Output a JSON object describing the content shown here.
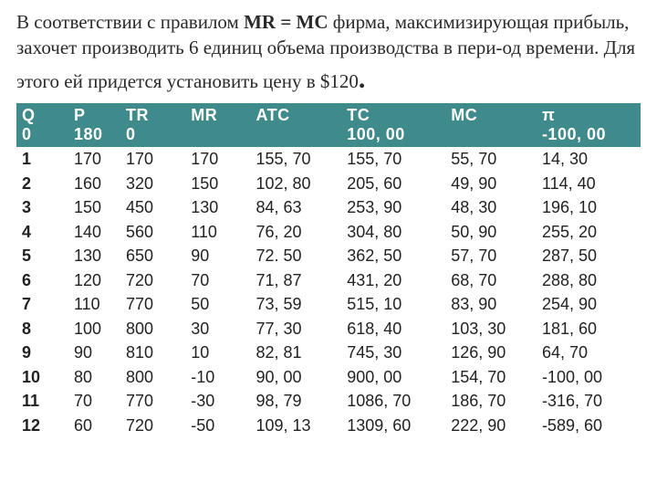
{
  "intro": {
    "part1": "В соответствии с правилом ",
    "rule": "MR = MC",
    "part2": " фирма, максимизирующая прибыль, захочет производить 6 единиц объема производства в пери-од времени. Для этого ей придется установить цену в $120",
    "period": "."
  },
  "table": {
    "columns": [
      "Q",
      "P",
      "TR",
      "MR",
      "ATC",
      "TC",
      "MC",
      "π"
    ],
    "header_bg": "#3f8a8a",
    "header_fg": "#ffffff",
    "first_row": {
      "Q": "0",
      "P": "180",
      "TR": "0",
      "MR": "",
      "ATC": "",
      "TC": "100, 00",
      "MC": "",
      "PI": "-100, 00"
    },
    "rows": [
      {
        "Q": "1",
        "P": "170",
        "TR": "170",
        "MR": "170",
        "ATC": "155, 70",
        "TC": "155, 70",
        "MC": "55, 70",
        "PI": "14, 30"
      },
      {
        "Q": "2",
        "P": "160",
        "TR": "320",
        "MR": "150",
        "ATC": "102, 80",
        "TC": "205, 60",
        "MC": "49, 90",
        "PI": "114, 40"
      },
      {
        "Q": "3",
        "P": "150",
        "TR": "450",
        "MR": "130",
        "ATC": "84, 63",
        "TC": "253, 90",
        "MC": "48, 30",
        "PI": "196, 10"
      },
      {
        "Q": "4",
        "P": "140",
        "TR": "560",
        "MR": "110",
        "ATC": "76, 20",
        "TC": "304, 80",
        "MC": "50, 90",
        "PI": "255, 20"
      },
      {
        "Q": "5",
        "P": "130",
        "TR": "650",
        "MR": "90",
        "ATC": "72. 50",
        "TC": "362, 50",
        "MC": "57, 70",
        "PI": "287, 50"
      },
      {
        "Q": "6",
        "P": "120",
        "TR": "720",
        "MR": "70",
        "ATC": "71, 87",
        "TC": "431, 20",
        "MC": "68, 70",
        "PI": "288, 80"
      },
      {
        "Q": "7",
        "P": "110",
        "TR": "770",
        "MR": "50",
        "ATC": "73, 59",
        "TC": "515, 10",
        "MC": "83, 90",
        "PI": "254, 90"
      },
      {
        "Q": "8",
        "P": "100",
        "TR": "800",
        "MR": "30",
        "ATC": "77, 30",
        "TC": "618, 40",
        "MC": "103, 30",
        "PI": "181, 60"
      },
      {
        "Q": "9",
        "P": "90",
        "TR": "810",
        "MR": "10",
        "ATC": "82, 81",
        "TC": "745, 30",
        "MC": "126, 90",
        "PI": "64, 70"
      },
      {
        "Q": "10",
        "P": "80",
        "TR": "800",
        "MR": "-10",
        "ATC": "90, 00",
        "TC": "900, 00",
        "MC": "154, 70",
        "PI": "-100, 00"
      },
      {
        "Q": "11",
        "P": "70",
        "TR": "770",
        "MR": "-30",
        "ATC": "98, 79",
        "TC": "1086, 70",
        "MC": "186, 70",
        "PI": "-316, 70"
      },
      {
        "Q": "12",
        "P": "60",
        "TR": "720",
        "MR": "-50",
        "ATC": "109, 13",
        "TC": "1309, 60",
        "MC": "222, 90",
        "PI": "-589, 60"
      }
    ]
  }
}
